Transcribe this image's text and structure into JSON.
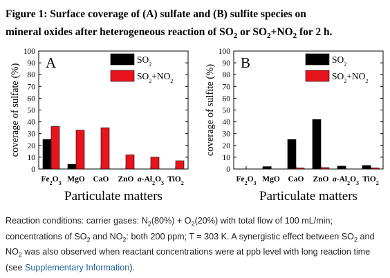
{
  "title": {
    "line1": "Figure 1: Surface coverage of (A) sulfate and (B) sulfite species on",
    "line2_prefix": "mineral oxides after heterogeneous reaction of SO",
    "line2_sub1": "2",
    "line2_mid": " or SO",
    "line2_sub2": "2",
    "line2_mid2": "+NO",
    "line2_sub3": "2",
    "line2_suffix": " for 2 h."
  },
  "colors": {
    "series_1": "#000000",
    "series_2": "#e8141b"
  },
  "chart_data": [
    {
      "type": "bar",
      "panel_label": "A",
      "categories": [
        "Fe2O3",
        "MgO",
        "CaO",
        "ZnO",
        "a-Al2O3",
        "TiO2"
      ],
      "series": [
        {
          "name": "SO2",
          "values": [
            25,
            4,
            0,
            0,
            0,
            0
          ]
        },
        {
          "name": "SO2+NO2",
          "values": [
            36,
            33,
            35,
            12,
            10,
            7
          ]
        }
      ],
      "ylim": [
        0,
        100
      ],
      "yticks": [
        0,
        10,
        20,
        30,
        40,
        50,
        60,
        70,
        80,
        90,
        100
      ],
      "ylabel": "coverage of sulfate (%)",
      "xlabel": "Particulate matters",
      "legend": "top-right"
    },
    {
      "type": "bar",
      "panel_label": "B",
      "categories": [
        "Fe2O3",
        "MgO",
        "CaO",
        "ZnO",
        "a-Al2O3",
        "TiO2"
      ],
      "series": [
        {
          "name": "SO2",
          "values": [
            0,
            2,
            25,
            42,
            2.5,
            3
          ]
        },
        {
          "name": "SO2+NO2",
          "values": [
            0,
            0,
            1,
            1.2,
            0,
            1
          ]
        }
      ],
      "ylim": [
        0,
        100
      ],
      "yticks": [
        0,
        10,
        20,
        30,
        40,
        50,
        60,
        70,
        80,
        90,
        100
      ],
      "ylabel": "coverage of sulfite (%)",
      "xlabel": "Particulate matters",
      "legend": "top-right"
    }
  ],
  "caption": {
    "t1": "Reaction conditions: carrier gases: N",
    "s1": "2",
    "t2": "(80%) + O",
    "s2": "2",
    "t3": "(20%) with total flow of 100 mL/min; concentrations of SO",
    "s3": "2",
    "t4": " and NO",
    "s4": "2",
    "t5": ": both 200 ppm; T = 303 K. A synergistic effect between SO",
    "s5": "2",
    "t6": " and NO",
    "s6": "2",
    "t7": " was also observed when reactant concentrations were at ppb level with long reaction time (see ",
    "link": "Supplementary Information",
    "t8": ")."
  }
}
